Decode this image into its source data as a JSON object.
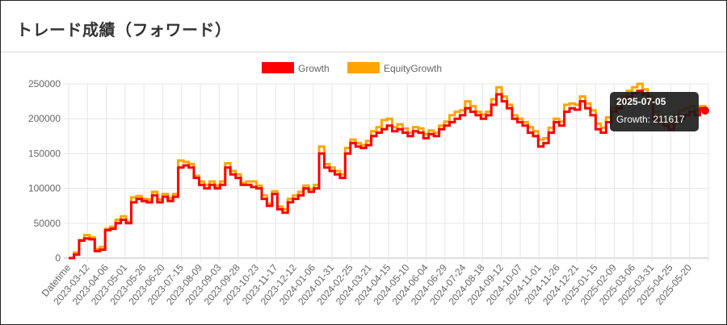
{
  "page": {
    "title": "トレード成績（フォワード）"
  },
  "colors": {
    "growth": "#ff0000",
    "equity": "#ffa500",
    "grid": "#e5e5e5",
    "tooltip_bg": "#1a1a1a"
  },
  "chart_data": {
    "type": "line",
    "title": "",
    "xlabel": "",
    "ylabel": "",
    "ylim": [
      0,
      250000
    ],
    "y_ticks": [
      0,
      50000,
      100000,
      150000,
      200000,
      250000
    ],
    "x_tick_labels": [
      "Datetime",
      "2023-03-12",
      "2023-04-06",
      "2023-05-01",
      "2023-05-26",
      "2023-06-20",
      "2023-07-15",
      "2023-08-09",
      "2023-09-03",
      "2023-09-28",
      "2023-10-23",
      "2023-11-17",
      "2023-12-12",
      "2024-01-06",
      "2024-01-31",
      "2024-02-25",
      "2024-03-21",
      "2024-04-15",
      "2024-05-10",
      "2024-06-04",
      "2024-06-29",
      "2024-07-24",
      "2024-08-18",
      "2024-09-12",
      "2024-10-07",
      "2024-11-01",
      "2024-11-26",
      "2024-12-21",
      "2025-01-15",
      "2025-02-09",
      "2025-03-06",
      "2025-03-31",
      "2025-04-25",
      "2025-05-20"
    ],
    "legend": {
      "position": "top",
      "entries": [
        "Growth",
        "EquityGrowth"
      ]
    },
    "grid": true,
    "series": [
      {
        "name": "Growth",
        "values": [
          0,
          5000,
          25000,
          28000,
          27000,
          10000,
          12000,
          40000,
          42000,
          50000,
          55000,
          50000,
          80000,
          85000,
          82000,
          80000,
          90000,
          80000,
          88000,
          82000,
          88000,
          130000,
          133000,
          130000,
          115000,
          105000,
          100000,
          105000,
          100000,
          105000,
          130000,
          120000,
          115000,
          105000,
          105000,
          102000,
          100000,
          85000,
          75000,
          92000,
          70000,
          65000,
          80000,
          85000,
          90000,
          100000,
          95000,
          100000,
          150000,
          130000,
          125000,
          120000,
          115000,
          150000,
          165000,
          160000,
          158000,
          162000,
          175000,
          180000,
          185000,
          190000,
          182000,
          185000,
          180000,
          175000,
          182000,
          180000,
          172000,
          178000,
          175000,
          185000,
          190000,
          195000,
          200000,
          205000,
          215000,
          210000,
          205000,
          200000,
          205000,
          220000,
          235000,
          225000,
          215000,
          200000,
          195000,
          190000,
          180000,
          175000,
          160000,
          165000,
          180000,
          195000,
          190000,
          210000,
          215000,
          213000,
          225000,
          215000,
          205000,
          185000,
          180000,
          195000,
          210000,
          215000,
          225000,
          232000,
          237000,
          240000,
          235000,
          225000,
          200000,
          195000,
          190000,
          185000,
          195000,
          200000,
          205000,
          210000,
          205000,
          215000,
          211617
        ]
      },
      {
        "name": "EquityGrowth",
        "values": [
          0,
          8000,
          26000,
          33000,
          30000,
          13000,
          16000,
          42000,
          45000,
          55000,
          60000,
          52000,
          87000,
          89000,
          85000,
          84000,
          95000,
          84000,
          92000,
          86000,
          92000,
          140000,
          138000,
          135000,
          118000,
          110000,
          105000,
          110000,
          104000,
          110000,
          136000,
          125000,
          120000,
          108000,
          110000,
          110000,
          104000,
          90000,
          78000,
          96000,
          74000,
          70000,
          85000,
          90000,
          95000,
          104000,
          99000,
          105000,
          160000,
          135000,
          130000,
          125000,
          120000,
          158000,
          170000,
          165000,
          162000,
          168000,
          182000,
          188000,
          198000,
          200000,
          188000,
          192000,
          186000,
          180000,
          188000,
          186000,
          178000,
          183000,
          180000,
          190000,
          196000,
          205000,
          210000,
          212000,
          225000,
          218000,
          210000,
          206000,
          210000,
          228000,
          245000,
          232000,
          220000,
          205000,
          200000,
          195000,
          188000,
          182000,
          170000,
          172000,
          187000,
          200000,
          196000,
          220000,
          222000,
          220000,
          232000,
          222000,
          212000,
          193000,
          187000,
          202000,
          216000,
          222000,
          232000,
          240000,
          245000,
          250000,
          242000,
          232000,
          210000,
          203000,
          196000,
          193000,
          205000,
          212000,
          215000,
          218000,
          212000,
          218000,
          212000
        ]
      }
    ],
    "tooltip": {
      "title": "2025-07-05",
      "label": "Growth: 211617"
    }
  }
}
